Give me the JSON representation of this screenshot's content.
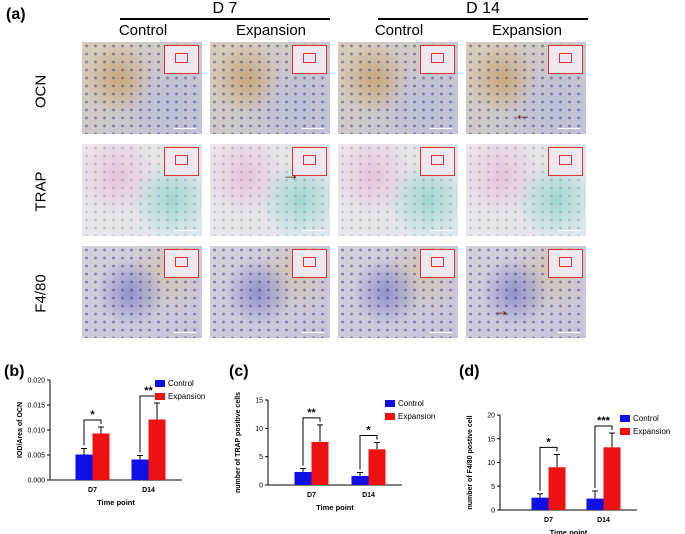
{
  "figure": {
    "panel_a_label": "(a)",
    "groups": [
      "D 7",
      "D 14"
    ],
    "conditions": [
      "Control",
      "Expansion",
      "Control",
      "Expansion"
    ],
    "rows": [
      "OCN",
      "TRAP",
      "F4/80"
    ]
  },
  "colors": {
    "control": "#1010e6",
    "expansion": "#ee1111",
    "inset_border": "#dd3333"
  },
  "chart_data": [
    {
      "panel_label": "(b)",
      "type": "bar",
      "categories": [
        "D7",
        "D14"
      ],
      "series": [
        {
          "name": "Control",
          "values": [
            0.0051,
            0.0041
          ],
          "errors": [
            0.0012,
            0.0008
          ]
        },
        {
          "name": "Expansion",
          "values": [
            0.0093,
            0.0121
          ],
          "errors": [
            0.0013,
            0.0033
          ]
        }
      ],
      "xlabel": "Time point",
      "ylabel": "IOD/Area of OCN",
      "ylim": [
        0,
        0.02
      ],
      "yticks": [
        "0.000",
        "0.005",
        "0.010",
        "0.015",
        "0.020"
      ],
      "significance": [
        "*",
        "**"
      ],
      "legend": [
        "Control",
        "Expansion"
      ],
      "legend_position": "top-right"
    },
    {
      "panel_label": "(c)",
      "type": "bar",
      "categories": [
        "D7",
        "D14"
      ],
      "series": [
        {
          "name": "Control",
          "values": [
            2.3,
            1.6
          ],
          "errors": [
            0.6,
            0.6
          ]
        },
        {
          "name": "Expansion",
          "values": [
            7.6,
            6.3
          ],
          "errors": [
            3.0,
            1.2
          ]
        }
      ],
      "xlabel": "Time point",
      "ylabel": "number of TRAP positive cells",
      "ylim": [
        0,
        15
      ],
      "yticks": [
        "0",
        "5",
        "10",
        "15"
      ],
      "significance": [
        "**",
        "*"
      ],
      "legend": [
        "Control",
        "Expansion"
      ],
      "legend_position": "top-right"
    },
    {
      "panel_label": "(d)",
      "type": "bar",
      "categories": [
        "D7",
        "D14"
      ],
      "series": [
        {
          "name": "Control",
          "values": [
            2.6,
            2.4
          ],
          "errors": [
            0.8,
            1.6
          ]
        },
        {
          "name": "Expansion",
          "values": [
            9.0,
            13.2
          ],
          "errors": [
            2.7,
            3.0
          ]
        }
      ],
      "xlabel": "Time point",
      "ylabel": "number of F4/80 postive cell",
      "ylim": [
        0,
        20
      ],
      "yticks": [
        "0",
        "5",
        "10",
        "15",
        "20"
      ],
      "significance": [
        "*",
        "***"
      ],
      "legend": [
        "Control",
        "Expansion"
      ],
      "legend_position": "top-right"
    }
  ]
}
